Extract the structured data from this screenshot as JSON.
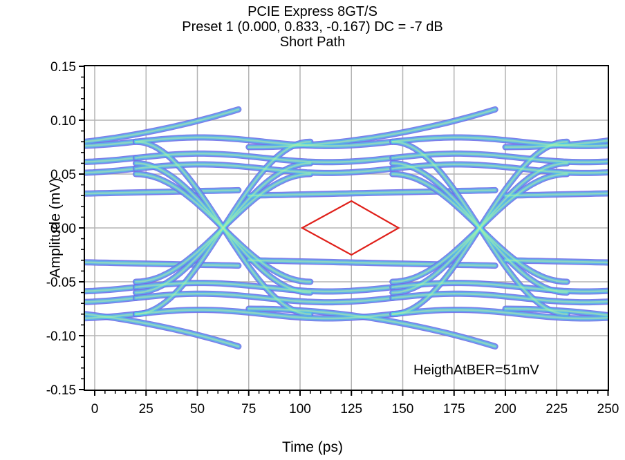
{
  "chart_data": {
    "type": "eye-diagram",
    "title": "PCIE Express 8GT/S",
    "subtitle_1": "Preset 1 (0.000, 0.833, -0.167) DC = -7 dB",
    "subtitle_2": "Short Path",
    "xlabel": "Time (ps)",
    "ylabel": "Amplitude (mV)",
    "xlim": [
      0,
      250
    ],
    "ylim": [
      -0.15,
      0.15
    ],
    "x_ticks": [
      "0",
      "25",
      "50",
      "75",
      "100",
      "125",
      "150",
      "175",
      "200",
      "225",
      "250"
    ],
    "y_ticks": [
      "0.15",
      "0.10",
      "0.05",
      "0.00",
      "-0.05",
      "-0.10",
      "-0.15"
    ],
    "grid": true,
    "annotation": "HeigthAtBER=51mV",
    "eye_mask": {
      "color": "#e0201a",
      "points": [
        [
          101,
          0.0
        ],
        [
          125,
          0.025
        ],
        [
          148,
          0.0
        ],
        [
          125,
          -0.025
        ]
      ]
    },
    "colors": {
      "outer_density": "#6f6fe8",
      "mid_density": "#4dd8e8",
      "inner_density": "#a8f0a8",
      "grid": "#b4b4b4"
    }
  }
}
